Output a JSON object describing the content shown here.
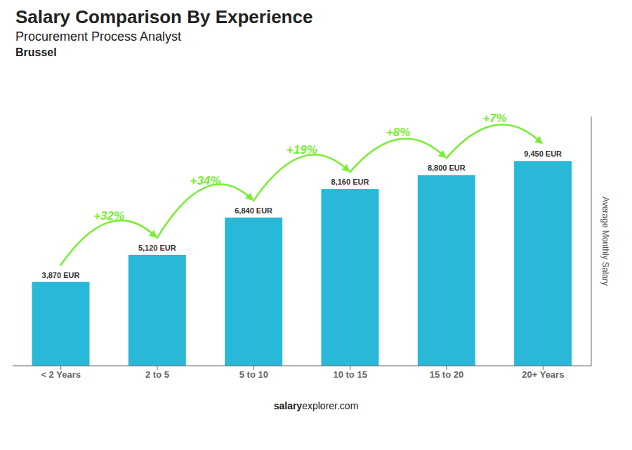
{
  "chart_data": {
    "type": "bar",
    "title": "Salary Comparison By Experience",
    "subtitle": [
      "Procurement Process Analyst",
      "Brussel"
    ],
    "y_label": "Average Monthly Salary",
    "categories": [
      "< 2 Years",
      "2 to 5",
      "5 to 10",
      "10 to 15",
      "15 to 20",
      "20+ Years"
    ],
    "values": [
      3870,
      5120,
      6840,
      8160,
      8800,
      9450
    ],
    "value_labels": [
      "3,870 EUR",
      "5,120 EUR",
      "6,840 EUR",
      "8,160 EUR",
      "8,800 EUR",
      "9,450 EUR"
    ],
    "data_labels": true,
    "color": "#29b8d8",
    "ylim": [
      0,
      11500
    ],
    "tick_labels": "x",
    "grid": false,
    "annotations": [
      {
        "text": "+32%",
        "from": "< 2 Years",
        "to": "2 to 5",
        "color": "#77ee33"
      },
      {
        "text": "+34%",
        "from": "2 to 5",
        "to": "5 to 10",
        "color": "#77ee33"
      },
      {
        "text": "+19%",
        "from": "5 to 10",
        "to": "10 to 15",
        "color": "#77ee33"
      },
      {
        "text": "+8%",
        "from": "10 to 15",
        "to": "15 to 20",
        "color": "#77ee33"
      },
      {
        "text": "+7%",
        "from": "15 to 20",
        "to": "20+ Years",
        "color": "#77ee33"
      }
    ],
    "footer": [
      "salary",
      "explorer.com"
    ]
  }
}
